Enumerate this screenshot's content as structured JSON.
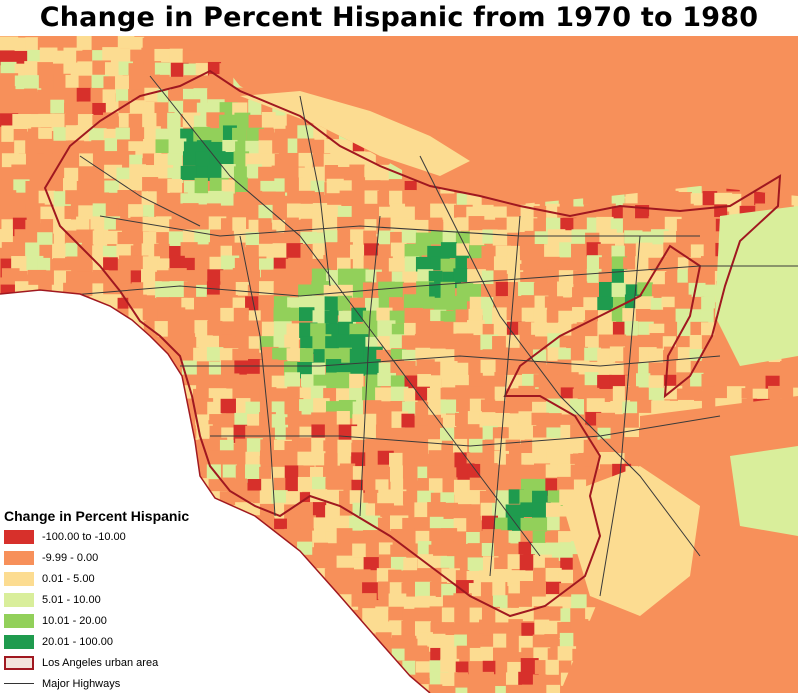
{
  "title": "Change in Percent Hispanic from 1970 to 1980",
  "legend": {
    "title": "Change in Percent Hispanic",
    "classes": [
      {
        "label": "-100.00 to -10.00",
        "color": "#d7302b"
      },
      {
        "label": "-9.99 - 0.00",
        "color": "#f7905a"
      },
      {
        "label": "0.01 - 5.00",
        "color": "#fcdc91"
      },
      {
        "label": "5.01 - 10.00",
        "color": "#d9ee9b"
      },
      {
        "label": "10.01 - 20.00",
        "color": "#92d05a"
      },
      {
        "label": "20.01 - 100.00",
        "color": "#1f9b4e"
      }
    ],
    "urban_area": {
      "label": "Los Angeles urban area",
      "fill": "#f3e4dc",
      "stroke": "#a01820"
    },
    "highways": {
      "label": "Major Highways",
      "color": "#333333"
    }
  },
  "colors": {
    "water": "#ffffff",
    "boundary": "#a01820",
    "highway": "#3a3a3a"
  }
}
